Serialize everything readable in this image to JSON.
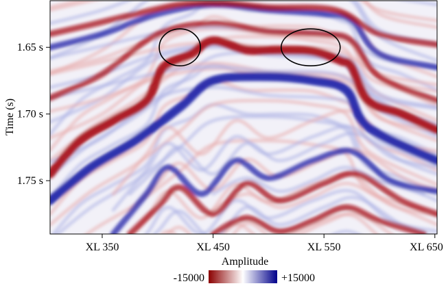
{
  "chart_data": {
    "type": "heatmap",
    "title": "",
    "xlabel": "",
    "ylabel": "Time (s)",
    "x_ticks": [
      "XL 350",
      "XL 450",
      "XL 550",
      "XL 650"
    ],
    "x_tick_values": [
      350,
      450,
      550,
      650
    ],
    "y_ticks": [
      "1.65 s",
      "1.70 s",
      "1.75 s"
    ],
    "y_tick_values": [
      1.65,
      1.7,
      1.75
    ],
    "xlim": [
      303,
      652
    ],
    "ylim": [
      1.79,
      1.615
    ],
    "colorbar": {
      "label": "Amplitude",
      "min_label": "-15000",
      "max_label": "+15000",
      "min": -15000,
      "max": 15000,
      "colors": [
        "#8b0000",
        "#ffffff",
        "#00008b"
      ]
    },
    "annotations": [
      {
        "shape": "ellipse",
        "cx": 420,
        "cy": 1.65
      },
      {
        "shape": "ellipse",
        "cx": 538,
        "cy": 1.65
      }
    ],
    "horizons": [
      {
        "polarity": "red",
        "points": [
          [
            303,
            1.745
          ],
          [
            330,
            1.72
          ],
          [
            360,
            1.705
          ],
          [
            390,
            1.69
          ],
          [
            405,
            1.665
          ],
          [
            430,
            1.655
          ],
          [
            450,
            1.645
          ],
          [
            480,
            1.652
          ],
          [
            510,
            1.652
          ],
          [
            540,
            1.653
          ],
          [
            565,
            1.66
          ],
          [
            575,
            1.665
          ],
          [
            590,
            1.69
          ],
          [
            620,
            1.7
          ],
          [
            652,
            1.712
          ]
        ]
      },
      {
        "polarity": "blue",
        "points": [
          [
            303,
            1.765
          ],
          [
            340,
            1.74
          ],
          [
            380,
            1.72
          ],
          [
            420,
            1.695
          ],
          [
            450,
            1.675
          ],
          [
            500,
            1.672
          ],
          [
            540,
            1.675
          ],
          [
            570,
            1.682
          ],
          [
            590,
            1.71
          ],
          [
            652,
            1.735
          ]
        ]
      },
      {
        "polarity": "red",
        "points": [
          [
            303,
            1.688
          ],
          [
            350,
            1.67
          ],
          [
            400,
            1.64
          ],
          [
            450,
            1.632
          ],
          [
            500,
            1.638
          ],
          [
            550,
            1.64
          ],
          [
            575,
            1.645
          ],
          [
            600,
            1.672
          ],
          [
            652,
            1.69
          ]
        ]
      },
      {
        "polarity": "blue",
        "points": [
          [
            303,
            1.65
          ],
          [
            350,
            1.64
          ],
          [
            400,
            1.625
          ],
          [
            450,
            1.618
          ],
          [
            500,
            1.622
          ],
          [
            550,
            1.625
          ],
          [
            575,
            1.63
          ],
          [
            600,
            1.655
          ],
          [
            652,
            1.665
          ]
        ]
      },
      {
        "polarity": "blue",
        "points": [
          [
            360,
            1.79
          ],
          [
            390,
            1.76
          ],
          [
            410,
            1.74
          ],
          [
            440,
            1.76
          ],
          [
            470,
            1.735
          ],
          [
            500,
            1.748
          ],
          [
            540,
            1.735
          ],
          [
            575,
            1.728
          ],
          [
            610,
            1.75
          ],
          [
            652,
            1.758
          ]
        ]
      },
      {
        "polarity": "red",
        "points": [
          [
            375,
            1.79
          ],
          [
            400,
            1.77
          ],
          [
            420,
            1.755
          ],
          [
            450,
            1.775
          ],
          [
            480,
            1.752
          ],
          [
            510,
            1.765
          ],
          [
            550,
            1.752
          ],
          [
            580,
            1.745
          ],
          [
            620,
            1.765
          ],
          [
            652,
            1.775
          ]
        ]
      },
      {
        "polarity": "red",
        "points": [
          [
            303,
            1.64
          ],
          [
            340,
            1.633
          ],
          [
            380,
            1.625
          ],
          [
            420,
            1.618
          ],
          [
            460,
            1.617
          ],
          [
            500,
            1.62
          ],
          [
            560,
            1.622
          ],
          [
            600,
            1.64
          ],
          [
            652,
            1.648
          ]
        ]
      },
      {
        "polarity": "red",
        "points": [
          [
            450,
            1.79
          ],
          [
            480,
            1.778
          ],
          [
            510,
            1.788
          ],
          [
            540,
            1.78
          ],
          [
            570,
            1.77
          ],
          [
            600,
            1.78
          ],
          [
            640,
            1.79
          ]
        ]
      }
    ]
  }
}
